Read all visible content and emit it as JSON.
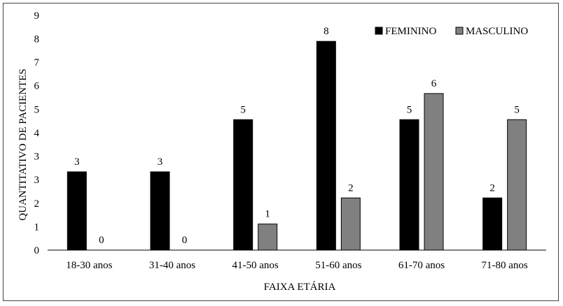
{
  "chart_data": {
    "type": "bar",
    "categories": [
      "18-30 anos",
      "31-40 anos",
      "41-50 anos",
      "51-60 anos",
      "61-70 anos",
      "71-80 anos"
    ],
    "series": [
      {
        "name": "FEMININO",
        "values": [
          3,
          3,
          5,
          8,
          5,
          2
        ],
        "color": "#000000"
      },
      {
        "name": "MASCULINO",
        "values": [
          0,
          0,
          1,
          2,
          6,
          5
        ],
        "color": "#808080"
      }
    ],
    "value_labels": [
      [
        "3",
        "3",
        "5",
        "8",
        "5",
        "2"
      ],
      [
        "0",
        "0",
        "1",
        "2",
        "6",
        "5"
      ]
    ],
    "y_ticks": [
      "0",
      "1",
      "2",
      "3",
      "3",
      "4",
      "5",
      "6",
      "7",
      "8",
      "9"
    ],
    "title": "",
    "xlabel": "FAIXA ETÁRIA",
    "ylabel": "QUANTITATIVO DE PACIENTES",
    "ylim": [
      0,
      9
    ],
    "grid": false,
    "legend_position": "top-right"
  }
}
